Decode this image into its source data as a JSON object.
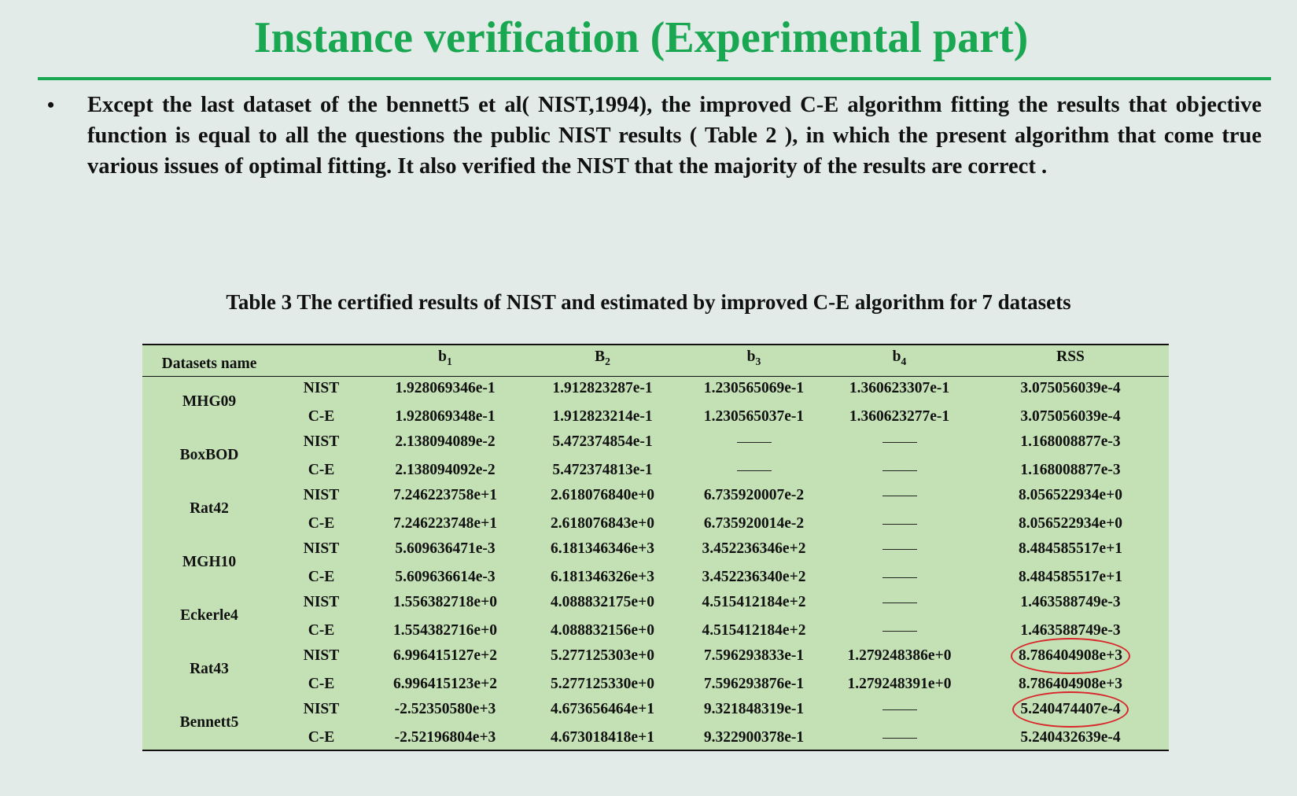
{
  "title": "Instance verification (Experimental part)",
  "bullet": {
    "symbol": "•",
    "text": "Except the last dataset of the bennett5 et al( NIST,1994), the improved C-E algorithm fitting the results that objective function is equal to all the questions the public NIST results ( Table 2 ), in which the present algorithm that come true various issues of optimal fitting. It also verified the NIST that the majority of the results are correct ."
  },
  "table": {
    "caption": "Table 3 The certified results of NIST and estimated by improved C-E algorithm for 7 datasets",
    "headers": {
      "name": "Datasets name",
      "b1_base": "b",
      "b1_sub": "1",
      "b2_base": "B",
      "b2_sub": "2",
      "b3_base": "b",
      "b3_sub": "3",
      "b4_base": "b",
      "b4_sub": "4",
      "rss": "RSS"
    },
    "datasets": [
      {
        "name": "MHG09",
        "nist": {
          "label": "NIST",
          "b1": "1.928069346e-1",
          "b2": "1.912823287e-1",
          "b3": "1.230565069e-1",
          "b4": "1.360623307e-1",
          "rss": "3.075056039e-4"
        },
        "ce": {
          "label": "C-E",
          "b1": "1.928069348e-1",
          "b2": "1.912823214e-1",
          "b3": "1.230565037e-1",
          "b4": "1.360623277e-1",
          "rss": "3.075056039e-4"
        }
      },
      {
        "name": "BoxBOD",
        "nist": {
          "label": "NIST",
          "b1": "2.138094089e-2",
          "b2": "5.472374854e-1",
          "b3": "",
          "b4": "",
          "rss": "1.168008877e-3"
        },
        "ce": {
          "label": "C-E",
          "b1": "2.138094092e-2",
          "b2": "5.472374813e-1",
          "b3": "",
          "b4": "",
          "rss": "1.168008877e-3"
        }
      },
      {
        "name": "Rat42",
        "nist": {
          "label": "NIST",
          "b1": "7.246223758e+1",
          "b2": "2.618076840e+0",
          "b3": "6.735920007e-2",
          "b4": "",
          "rss": "8.056522934e+0"
        },
        "ce": {
          "label": "C-E",
          "b1": "7.246223748e+1",
          "b2": "2.618076843e+0",
          "b3": "6.735920014e-2",
          "b4": "",
          "rss": "8.056522934e+0"
        }
      },
      {
        "name": "MGH10",
        "nist": {
          "label": "NIST",
          "b1": "5.609636471e-3",
          "b2": "6.181346346e+3",
          "b3": "3.452236346e+2",
          "b4": "",
          "rss": "8.484585517e+1"
        },
        "ce": {
          "label": "C-E",
          "b1": "5.609636614e-3",
          "b2": "6.181346326e+3",
          "b3": "3.452236340e+2",
          "b4": "",
          "rss": "8.484585517e+1"
        }
      },
      {
        "name": "Eckerle4",
        "nist": {
          "label": "NIST",
          "b1": "1.556382718e+0",
          "b2": "4.088832175e+0",
          "b3": "4.515412184e+2",
          "b4": "",
          "rss": "1.463588749e-3"
        },
        "ce": {
          "label": "C-E",
          "b1": "1.554382716e+0",
          "b2": "4.088832156e+0",
          "b3": "4.515412184e+2",
          "b4": "",
          "rss": "1.463588749e-3"
        }
      },
      {
        "name": "Rat43",
        "nist": {
          "label": "NIST",
          "b1": "6.996415127e+2",
          "b2": "5.277125303e+0",
          "b3": "7.596293833e-1",
          "b4": "1.279248386e+0",
          "rss": "8.786404908e+3"
        },
        "ce": {
          "label": "C-E",
          "b1": "6.996415123e+2",
          "b2": "5.277125330e+0",
          "b3": "7.596293876e-1",
          "b4": "1.279248391e+0",
          "rss": "8.786404908e+3"
        }
      },
      {
        "name": "Bennett5",
        "nist": {
          "label": "NIST",
          "b1": "-2.52350580e+3",
          "b2": "4.673656464e+1",
          "b3": "9.321848319e-1",
          "b4": "",
          "rss": "5.240474407e-4"
        },
        "ce": {
          "label": "C-E",
          "b1": "-2.52196804e+3",
          "b2": "4.673018418e+1",
          "b3": "9.322900378e-1",
          "b4": "",
          "rss": "5.240432639e-4"
        }
      }
    ]
  }
}
